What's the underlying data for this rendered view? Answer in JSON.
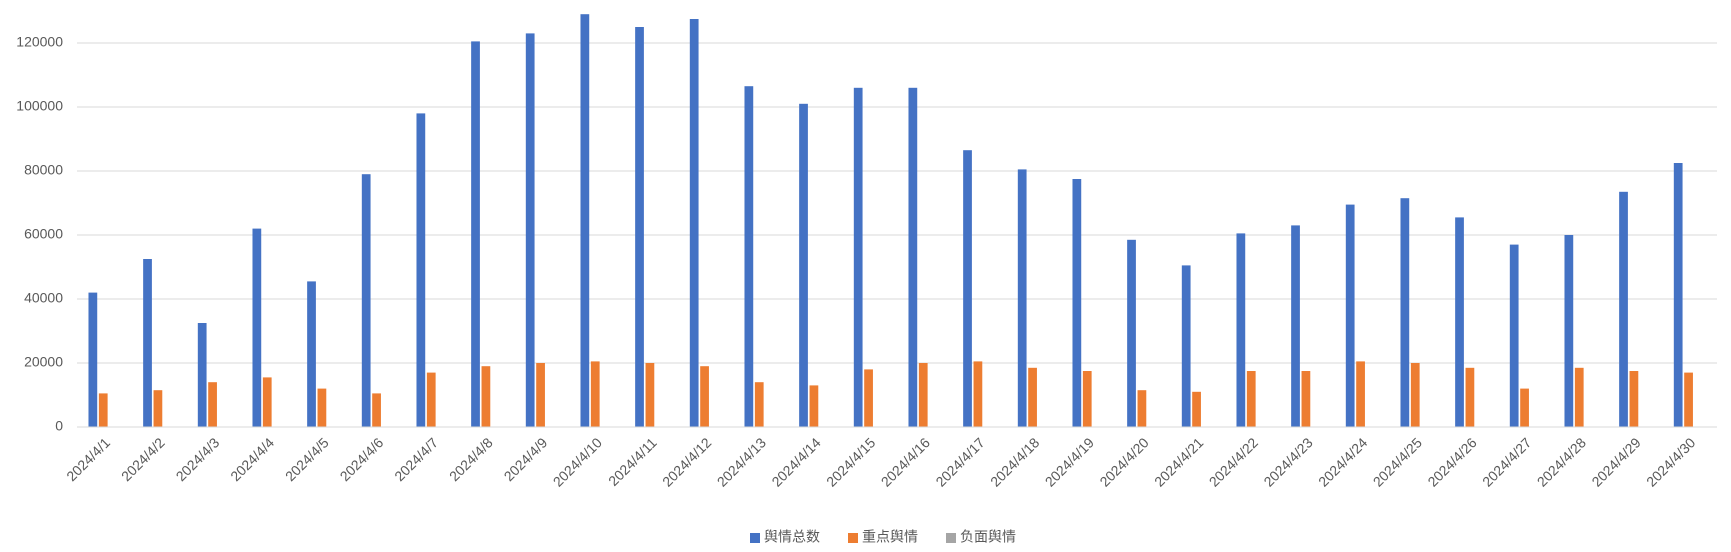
{
  "chart_data": {
    "type": "bar",
    "categories": [
      "2024/4/1",
      "2024/4/2",
      "2024/4/3",
      "2024/4/4",
      "2024/4/5",
      "2024/4/6",
      "2024/4/7",
      "2024/4/8",
      "2024/4/9",
      "2024/4/10",
      "2024/4/11",
      "2024/4/12",
      "2024/4/13",
      "2024/4/14",
      "2024/4/15",
      "2024/4/16",
      "2024/4/17",
      "2024/4/18",
      "2024/4/19",
      "2024/4/20",
      "2024/4/21",
      "2024/4/22",
      "2024/4/23",
      "2024/4/24",
      "2024/4/25",
      "2024/4/26",
      "2024/4/27",
      "2024/4/28",
      "2024/4/29",
      "2024/4/30"
    ],
    "series": [
      {
        "name": "舆情总数",
        "color": "#4472c4",
        "values": [
          42000,
          52500,
          32500,
          62000,
          45500,
          79000,
          98000,
          120500,
          123000,
          129000,
          125000,
          127500,
          106500,
          101000,
          106000,
          106000,
          86500,
          80500,
          77500,
          58500,
          50500,
          60500,
          63000,
          69500,
          71500,
          65500,
          57000,
          60000,
          73500,
          82500
        ]
      },
      {
        "name": "重点舆情",
        "color": "#ed7d31",
        "values": [
          10500,
          11500,
          14000,
          15500,
          12000,
          10500,
          17000,
          19000,
          20000,
          20500,
          20000,
          19000,
          14000,
          13000,
          18000,
          20000,
          20500,
          18500,
          17500,
          11500,
          11000,
          17500,
          17500,
          20500,
          20000,
          18500,
          12000,
          18500,
          17500,
          17000
        ]
      },
      {
        "name": "负面舆情",
        "color": "#a5a5a5",
        "values": [
          0,
          0,
          0,
          0,
          0,
          0,
          0,
          0,
          0,
          0,
          0,
          0,
          0,
          0,
          0,
          0,
          0,
          0,
          0,
          0,
          0,
          0,
          0,
          0,
          0,
          0,
          0,
          0,
          0,
          0
        ]
      }
    ],
    "ylim": [
      0,
      130000
    ],
    "yticks": [
      0,
      20000,
      40000,
      60000,
      80000,
      100000,
      120000
    ],
    "grid": true,
    "legend": "bottom"
  }
}
